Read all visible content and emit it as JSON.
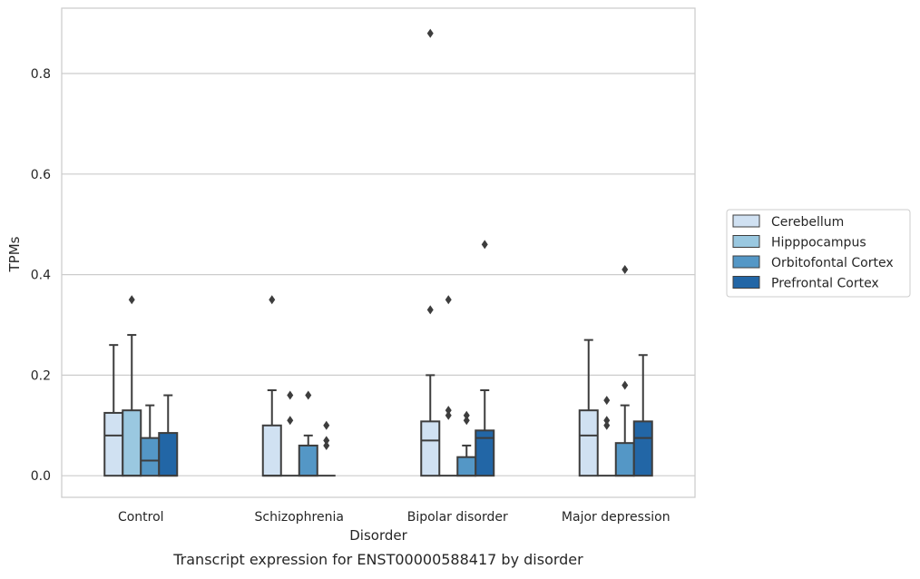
{
  "chart_data": {
    "type": "box",
    "caption": "Transcript expression for ENST00000588417 by disorder",
    "xlabel": "Disorder",
    "ylabel": "TPMs",
    "ylim": [
      -0.043,
      0.93
    ],
    "yticks": [
      0.0,
      0.2,
      0.4,
      0.6,
      0.8
    ],
    "ytick_labels": [
      "0.0",
      "0.2",
      "0.4",
      "0.6",
      "0.8"
    ],
    "grid": "horizontal",
    "legend_position": "right",
    "categories": [
      "Control",
      "Schizophrenia",
      "Bipolar disorder",
      "Major depression"
    ],
    "colors": {
      "Cerebellum": "#d0e1f2",
      "Hipppocampus": "#9ac8e0",
      "Orbitofontal Cortex": "#5497c6",
      "Prefrontal Cortex": "#2266a6"
    },
    "series": [
      {
        "name": "Cerebellum",
        "boxes": [
          {
            "q1": 0.0,
            "median": 0.08,
            "q3": 0.125,
            "whisker_low": 0.0,
            "whisker_high": 0.26,
            "outliers": []
          },
          {
            "q1": 0.0,
            "median": 0.0,
            "q3": 0.1,
            "whisker_low": 0.0,
            "whisker_high": 0.17,
            "outliers": [
              0.35
            ]
          },
          {
            "q1": 0.0,
            "median": 0.07,
            "q3": 0.108,
            "whisker_low": 0.0,
            "whisker_high": 0.2,
            "outliers": [
              0.33,
              0.88
            ]
          },
          {
            "q1": 0.0,
            "median": 0.08,
            "q3": 0.13,
            "whisker_low": 0.0,
            "whisker_high": 0.27,
            "outliers": []
          }
        ]
      },
      {
        "name": "Hipppocampus",
        "boxes": [
          {
            "q1": 0.0,
            "median": 0.0,
            "q3": 0.13,
            "whisker_low": 0.0,
            "whisker_high": 0.28,
            "outliers": [
              0.35
            ]
          },
          {
            "q1": 0.0,
            "median": 0.0,
            "q3": 0.0,
            "whisker_low": 0.0,
            "whisker_high": 0.0,
            "outliers": [
              0.11,
              0.16
            ]
          },
          {
            "q1": 0.0,
            "median": 0.0,
            "q3": 0.0,
            "whisker_low": 0.0,
            "whisker_high": 0.0,
            "outliers": [
              0.12,
              0.13,
              0.35
            ]
          },
          {
            "q1": 0.0,
            "median": 0.0,
            "q3": 0.0,
            "whisker_low": 0.0,
            "whisker_high": 0.0,
            "outliers": [
              0.1,
              0.11,
              0.15
            ]
          }
        ]
      },
      {
        "name": "Orbitofontal Cortex",
        "boxes": [
          {
            "q1": 0.0,
            "median": 0.03,
            "q3": 0.075,
            "whisker_low": 0.0,
            "whisker_high": 0.14,
            "outliers": []
          },
          {
            "q1": 0.0,
            "median": 0.0,
            "q3": 0.06,
            "whisker_low": 0.0,
            "whisker_high": 0.08,
            "outliers": [
              0.16
            ]
          },
          {
            "q1": 0.0,
            "median": 0.0,
            "q3": 0.037,
            "whisker_low": 0.0,
            "whisker_high": 0.06,
            "outliers": [
              0.11,
              0.12
            ]
          },
          {
            "q1": 0.0,
            "median": 0.0,
            "q3": 0.065,
            "whisker_low": 0.0,
            "whisker_high": 0.14,
            "outliers": [
              0.18,
              0.41
            ]
          }
        ]
      },
      {
        "name": "Prefrontal Cortex",
        "boxes": [
          {
            "q1": 0.0,
            "median": 0.0,
            "q3": 0.085,
            "whisker_low": 0.0,
            "whisker_high": 0.16,
            "outliers": []
          },
          {
            "q1": 0.0,
            "median": 0.0,
            "q3": 0.0,
            "whisker_low": 0.0,
            "whisker_high": 0.0,
            "outliers": [
              0.06,
              0.07,
              0.1
            ]
          },
          {
            "q1": 0.0,
            "median": 0.075,
            "q3": 0.09,
            "whisker_low": 0.0,
            "whisker_high": 0.17,
            "outliers": [
              0.46
            ]
          },
          {
            "q1": 0.0,
            "median": 0.075,
            "q3": 0.108,
            "whisker_low": 0.0,
            "whisker_high": 0.24,
            "outliers": []
          }
        ]
      }
    ]
  }
}
